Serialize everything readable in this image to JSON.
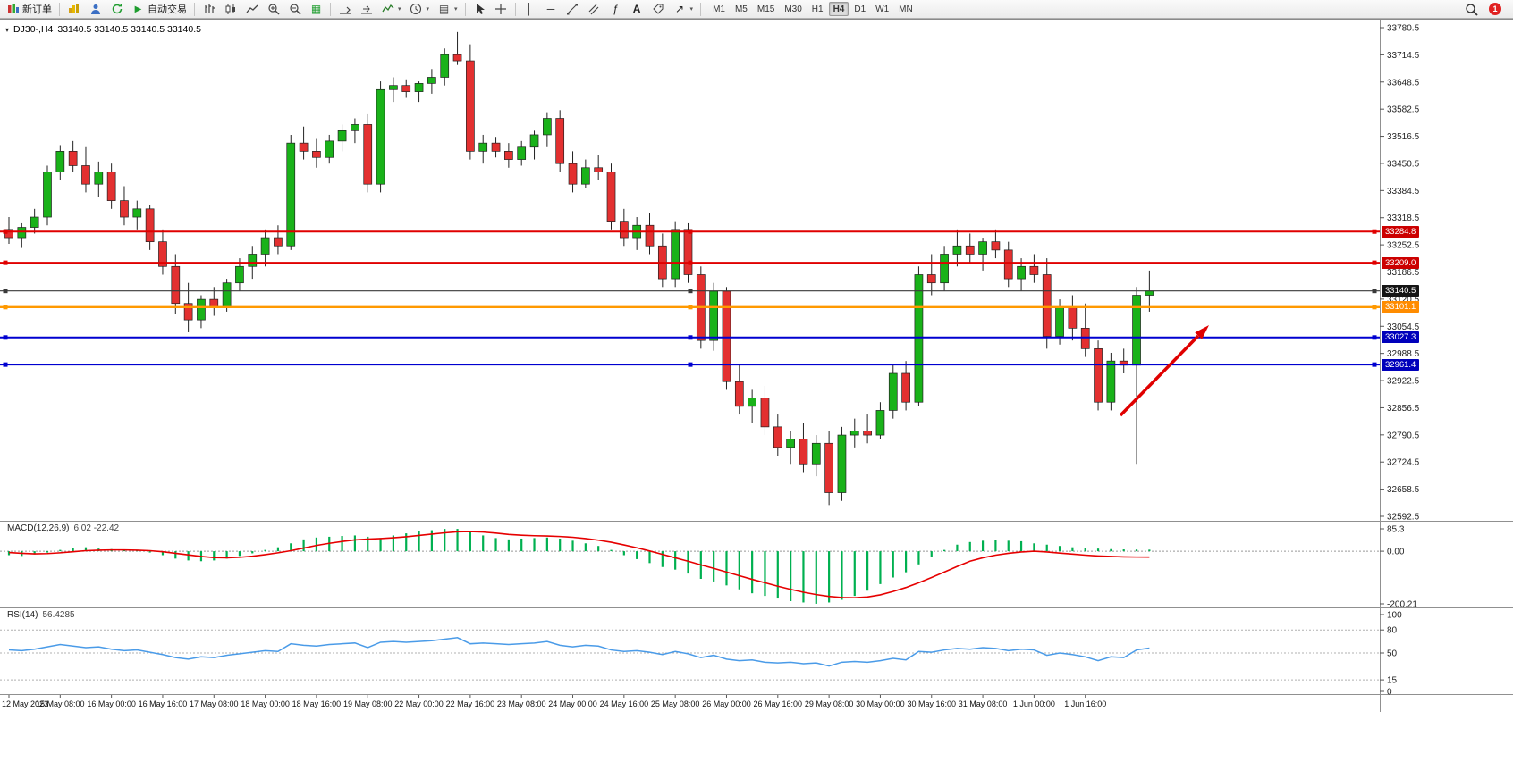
{
  "toolbar": {
    "new_order_label": "新订单",
    "autotrading_label": "自动交易",
    "timeframes": [
      "M1",
      "M5",
      "M15",
      "M30",
      "H1",
      "H4",
      "D1",
      "W1",
      "MN"
    ],
    "active_timeframe": "H4",
    "notification_count": "1"
  },
  "chart": {
    "title_symbol": "DJ30-,H4",
    "title_ohlc": "33140.5 33140.5 33140.5 33140.5"
  },
  "colors": {
    "bull": "#19b219",
    "bear": "#e33030",
    "wick": "#222222",
    "macd_hist": "#00b050",
    "macd_signal": "#e60000",
    "rsi_line": "#4a9be8",
    "arrow": "#e00000"
  },
  "price_axis": {
    "ticks": [
      "33780.5",
      "33714.5",
      "33648.5",
      "33582.5",
      "33516.5",
      "33450.5",
      "33384.5",
      "33318.5",
      "33252.5",
      "33186.5",
      "33120.5",
      "33054.5",
      "32988.5",
      "32922.5",
      "32856.5",
      "32790.5",
      "32724.5",
      "32658.5",
      "32592.5"
    ]
  },
  "levels": [
    {
      "name": "resistance-1",
      "value": 33284.8,
      "label": "33284.8",
      "color": "#e00000",
      "badge_bg": "#cc0000",
      "line_width": 2
    },
    {
      "name": "resistance-2",
      "value": 33209.0,
      "label": "33209.0",
      "color": "#e00000",
      "badge_bg": "#cc0000",
      "line_width": 2
    },
    {
      "name": "current-price",
      "value": 33140.5,
      "label": "33140.5",
      "color": "#3a3a3a",
      "badge_bg": "#151515",
      "line_width": 1.2
    },
    {
      "name": "pivot-line",
      "value": 33101.1,
      "label": "33101.1",
      "color": "#ff9900",
      "badge_bg": "#ff8c00",
      "line_width": 2.4
    },
    {
      "name": "support-1",
      "value": 33027.3,
      "label": "33027.3",
      "color": "#0000d0",
      "badge_bg": "#0000bb",
      "line_width": 2
    },
    {
      "name": "support-2",
      "value": 32961.4,
      "label": "32961.4",
      "color": "#0000d0",
      "badge_bg": "#0000bb",
      "line_width": 2
    }
  ],
  "chart_data": {
    "type": "candlestick",
    "symbol": "DJ30-",
    "period": "H4",
    "price_range": [
      32592.5,
      33780.5
    ],
    "candles": [
      [
        33290,
        33320,
        33255,
        33270
      ],
      [
        33270,
        33305,
        33245,
        33295
      ],
      [
        33295,
        33340,
        33280,
        33320
      ],
      [
        33320,
        33445,
        33300,
        33430
      ],
      [
        33430,
        33495,
        33410,
        33480
      ],
      [
        33480,
        33505,
        33430,
        33445
      ],
      [
        33445,
        33490,
        33380,
        33400
      ],
      [
        33400,
        33455,
        33370,
        33430
      ],
      [
        33430,
        33450,
        33340,
        33360
      ],
      [
        33360,
        33395,
        33300,
        33320
      ],
      [
        33320,
        33360,
        33290,
        33340
      ],
      [
        33340,
        33350,
        33240,
        33260
      ],
      [
        33260,
        33290,
        33180,
        33200
      ],
      [
        33200,
        33230,
        33085,
        33110
      ],
      [
        33110,
        33160,
        33040,
        33070
      ],
      [
        33070,
        33130,
        33050,
        33120
      ],
      [
        33120,
        33150,
        33080,
        33100
      ],
      [
        33100,
        33170,
        33090,
        33160
      ],
      [
        33160,
        33220,
        33140,
        33200
      ],
      [
        33200,
        33250,
        33170,
        33230
      ],
      [
        33230,
        33290,
        33200,
        33270
      ],
      [
        33270,
        33300,
        33230,
        33250
      ],
      [
        33250,
        33520,
        33240,
        33500
      ],
      [
        33500,
        33540,
        33460,
        33480
      ],
      [
        33480,
        33510,
        33440,
        33465
      ],
      [
        33465,
        33520,
        33450,
        33505
      ],
      [
        33505,
        33545,
        33480,
        33530
      ],
      [
        33530,
        33560,
        33500,
        33545
      ],
      [
        33545,
        33570,
        33380,
        33400
      ],
      [
        33400,
        33650,
        33380,
        33630
      ],
      [
        33630,
        33660,
        33600,
        33640
      ],
      [
        33640,
        33655,
        33610,
        33625
      ],
      [
        33625,
        33650,
        33600,
        33645
      ],
      [
        33645,
        33680,
        33620,
        33660
      ],
      [
        33660,
        33730,
        33640,
        33715
      ],
      [
        33715,
        33770,
        33690,
        33700
      ],
      [
        33700,
        33740,
        33460,
        33480
      ],
      [
        33480,
        33520,
        33450,
        33500
      ],
      [
        33500,
        33515,
        33465,
        33480
      ],
      [
        33480,
        33500,
        33440,
        33460
      ],
      [
        33460,
        33505,
        33445,
        33490
      ],
      [
        33490,
        33530,
        33460,
        33520
      ],
      [
        33520,
        33575,
        33490,
        33560
      ],
      [
        33560,
        33580,
        33430,
        33450
      ],
      [
        33450,
        33480,
        33380,
        33400
      ],
      [
        33400,
        33460,
        33390,
        33440
      ],
      [
        33440,
        33470,
        33410,
        33430
      ],
      [
        33430,
        33450,
        33290,
        33310
      ],
      [
        33310,
        33340,
        33250,
        33270
      ],
      [
        33270,
        33320,
        33240,
        33300
      ],
      [
        33300,
        33330,
        33230,
        33250
      ],
      [
        33250,
        33280,
        33150,
        33170
      ],
      [
        33170,
        33310,
        33150,
        33290
      ],
      [
        33290,
        33305,
        33160,
        33180
      ],
      [
        33180,
        33200,
        33000,
        33020
      ],
      [
        33020,
        33160,
        32995,
        33140
      ],
      [
        33140,
        33150,
        32900,
        32920
      ],
      [
        32920,
        32960,
        32840,
        32860
      ],
      [
        32860,
        32900,
        32820,
        32880
      ],
      [
        32880,
        32910,
        32790,
        32810
      ],
      [
        32810,
        32840,
        32740,
        32760
      ],
      [
        32760,
        32800,
        32720,
        32780
      ],
      [
        32780,
        32820,
        32700,
        32720
      ],
      [
        32720,
        32790,
        32690,
        32770
      ],
      [
        32770,
        32800,
        32620,
        32650
      ],
      [
        32650,
        32810,
        32630,
        32790
      ],
      [
        32790,
        32830,
        32760,
        32800
      ],
      [
        32800,
        32840,
        32770,
        32790
      ],
      [
        32790,
        32870,
        32780,
        32850
      ],
      [
        32850,
        32960,
        32830,
        32940
      ],
      [
        32940,
        32970,
        32850,
        32870
      ],
      [
        32870,
        33200,
        32860,
        33180
      ],
      [
        33180,
        33230,
        33130,
        33160
      ],
      [
        33160,
        33250,
        33140,
        33230
      ],
      [
        33230,
        33290,
        33200,
        33250
      ],
      [
        33250,
        33280,
        33210,
        33230
      ],
      [
        33230,
        33270,
        33190,
        33260
      ],
      [
        33260,
        33290,
        33220,
        33240
      ],
      [
        33240,
        33260,
        33150,
        33170
      ],
      [
        33170,
        33220,
        33140,
        33200
      ],
      [
        33200,
        33230,
        33160,
        33180
      ],
      [
        33180,
        33220,
        33000,
        33030
      ],
      [
        33030,
        33120,
        33010,
        33100
      ],
      [
        33100,
        33130,
        33020,
        33050
      ],
      [
        33050,
        33110,
        32980,
        33000
      ],
      [
        33000,
        33020,
        32850,
        32870
      ],
      [
        32870,
        32990,
        32850,
        32970
      ],
      [
        32970,
        33000,
        32940,
        32960
      ],
      [
        32960,
        33150,
        32720,
        33130
      ],
      [
        33130,
        33190,
        33090,
        33140.5
      ]
    ],
    "time_labels": [
      "12 May 2023",
      "15 May 08:00",
      "16 May 00:00",
      "16 May 16:00",
      "17 May 08:00",
      "18 May 00:00",
      "18 May 16:00",
      "19 May 08:00",
      "22 May 00:00",
      "22 May 16:00",
      "23 May 08:00",
      "24 May 00:00",
      "24 May 16:00",
      "25 May 08:00",
      "26 May 00:00",
      "26 May 16:00",
      "29 May 08:00",
      "30 May 00:00",
      "30 May 16:00",
      "31 May 08:00",
      "1 Jun 00:00",
      "1 Jun 16:00"
    ],
    "macd": {
      "label": "MACD(12,26,9)",
      "values_label": "6.02 -22.42",
      "axis_ticks": [
        "85.3",
        "0.00",
        "-200.21"
      ],
      "range": [
        -200.21,
        85.3
      ],
      "histogram": [
        -15,
        -18,
        -12,
        -5,
        5,
        12,
        15,
        10,
        8,
        5,
        2,
        -5,
        -15,
        -28,
        -35,
        -38,
        -35,
        -28,
        -18,
        -8,
        5,
        15,
        30,
        45,
        52,
        55,
        58,
        60,
        55,
        50,
        60,
        68,
        75,
        80,
        85,
        85,
        75,
        60,
        50,
        45,
        48,
        50,
        52,
        48,
        40,
        30,
        20,
        5,
        -15,
        -30,
        -45,
        -60,
        -70,
        -85,
        -105,
        -115,
        -130,
        -145,
        -160,
        -170,
        -180,
        -190,
        -195,
        -200,
        -195,
        -185,
        -170,
        -150,
        -125,
        -100,
        -80,
        -50,
        -20,
        5,
        25,
        35,
        40,
        42,
        40,
        38,
        30,
        25,
        20,
        15,
        12,
        10,
        8,
        7,
        6.5,
        6.02
      ],
      "signal": [
        -5,
        -8,
        -10,
        -9,
        -6,
        -2,
        2,
        4,
        5,
        5,
        4,
        2,
        -2,
        -8,
        -14,
        -20,
        -24,
        -25,
        -23,
        -19,
        -13,
        -6,
        2,
        12,
        22,
        30,
        37,
        43,
        46,
        48,
        51,
        55,
        60,
        65,
        70,
        74,
        75,
        73,
        69,
        64,
        61,
        59,
        58,
        56,
        53,
        48,
        42,
        34,
        24,
        13,
        1,
        -12,
        -25,
        -38,
        -52,
        -65,
        -79,
        -93,
        -107,
        -120,
        -133,
        -145,
        -156,
        -165,
        -172,
        -176,
        -177,
        -174,
        -166,
        -153,
        -138,
        -120,
        -100,
        -79,
        -58,
        -38,
        -25,
        -15,
        -8,
        -3,
        0,
        -3,
        -7,
        -11,
        -15,
        -18,
        -20,
        -21.5,
        -22.2,
        -22.42
      ]
    },
    "rsi": {
      "label": "RSI(14)",
      "value_label": "56.4285",
      "axis_ticks": [
        "100",
        "80",
        "50",
        "15",
        "0"
      ],
      "levels": [
        80,
        50,
        15
      ],
      "values": [
        54,
        53,
        55,
        58,
        61,
        59,
        57,
        58,
        55,
        53,
        54,
        51,
        48,
        44,
        42,
        45,
        44,
        47,
        49,
        51,
        53,
        52,
        62,
        60,
        59,
        61,
        62,
        63,
        57,
        64,
        65,
        64,
        65,
        66,
        68,
        70,
        62,
        63,
        62,
        61,
        62,
        63,
        65,
        60,
        58,
        60,
        59,
        54,
        52,
        53,
        51,
        48,
        52,
        49,
        44,
        47,
        42,
        40,
        41,
        38,
        37,
        38,
        36,
        37,
        33,
        38,
        39,
        38,
        40,
        43,
        41,
        52,
        51,
        54,
        56,
        55,
        57,
        56,
        53,
        55,
        54,
        47,
        50,
        48,
        45,
        40,
        45,
        44,
        54,
        56.43
      ]
    }
  }
}
